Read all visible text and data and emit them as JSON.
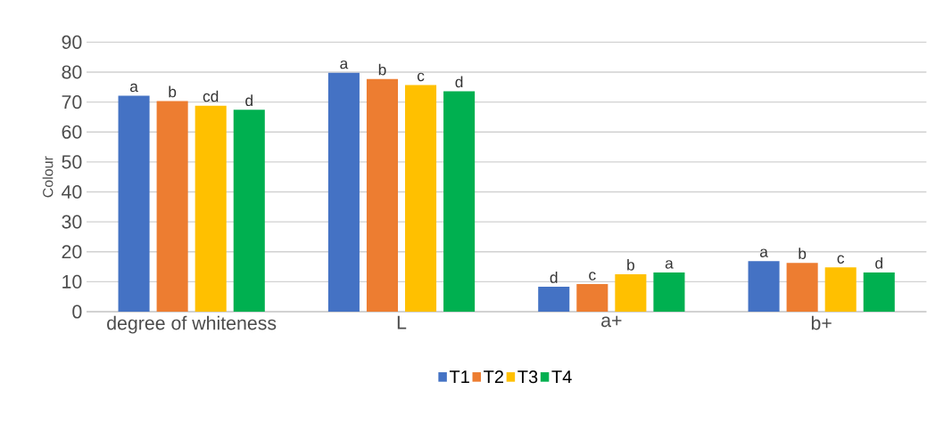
{
  "chart_data": {
    "type": "bar",
    "ylabel": "Colour",
    "categories": [
      "degree of whiteness",
      "L",
      "a+",
      "b+"
    ],
    "series": [
      {
        "name": "T1",
        "color": "#4472c4",
        "values": [
          72.1,
          79.8,
          8.3,
          16.9
        ],
        "value_labels": [
          "a",
          "a",
          "d",
          "a"
        ]
      },
      {
        "name": "T2",
        "color": "#ed7d31",
        "values": [
          70.3,
          77.7,
          9.2,
          16.3
        ],
        "value_labels": [
          "b",
          "b",
          "c",
          "b"
        ]
      },
      {
        "name": "T3",
        "color": "#ffc000",
        "values": [
          68.8,
          75.7,
          12.5,
          14.8
        ],
        "value_labels": [
          "cd",
          "c",
          "b",
          "c"
        ]
      },
      {
        "name": "T4",
        "color": "#00b050",
        "values": [
          67.4,
          73.6,
          13.1,
          13.1
        ],
        "value_labels": [
          "d",
          "d",
          "a",
          "d"
        ]
      }
    ],
    "ylim": [
      0,
      90
    ],
    "yticks": [
      0,
      10,
      20,
      30,
      40,
      50,
      60,
      70,
      80,
      90
    ],
    "grid": "y",
    "legend": "bottom"
  }
}
